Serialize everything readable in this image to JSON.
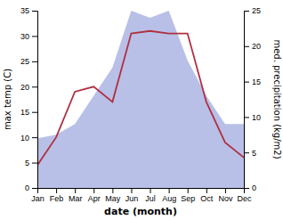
{
  "chart_data": {
    "type": "line",
    "categories": [
      "Jan",
      "Feb",
      "Mar",
      "Apr",
      "May",
      "Jun",
      "Jul",
      "Aug",
      "Sep",
      "Oct",
      "Nov",
      "Dec"
    ],
    "series": [
      {
        "type": "area",
        "axis": "y2",
        "color": "#b8c0e8",
        "values": [
          7.0,
          7.5,
          9.0,
          13.0,
          17.0,
          25.0,
          24.0,
          25.0,
          18.0,
          13.0,
          9.0,
          9.0
        ]
      },
      {
        "type": "line",
        "color": "#b03040",
        "values": [
          4.5,
          10.0,
          19.0,
          20.0,
          17.0,
          30.5,
          31.0,
          30.5,
          30.5,
          17.0,
          9.0,
          6.0
        ]
      }
    ],
    "xlabel": "date (month)",
    "ylabel": "max temp (C)",
    "y2label": "med. precipitation (kg/m2)",
    "ylim": [
      0,
      35
    ],
    "yticks": [
      0,
      5,
      10,
      15,
      20,
      25,
      30,
      35
    ],
    "y2lim": [
      0,
      25
    ],
    "y2ticks": [
      0,
      5,
      10,
      15,
      20,
      25
    ],
    "grid": false
  }
}
